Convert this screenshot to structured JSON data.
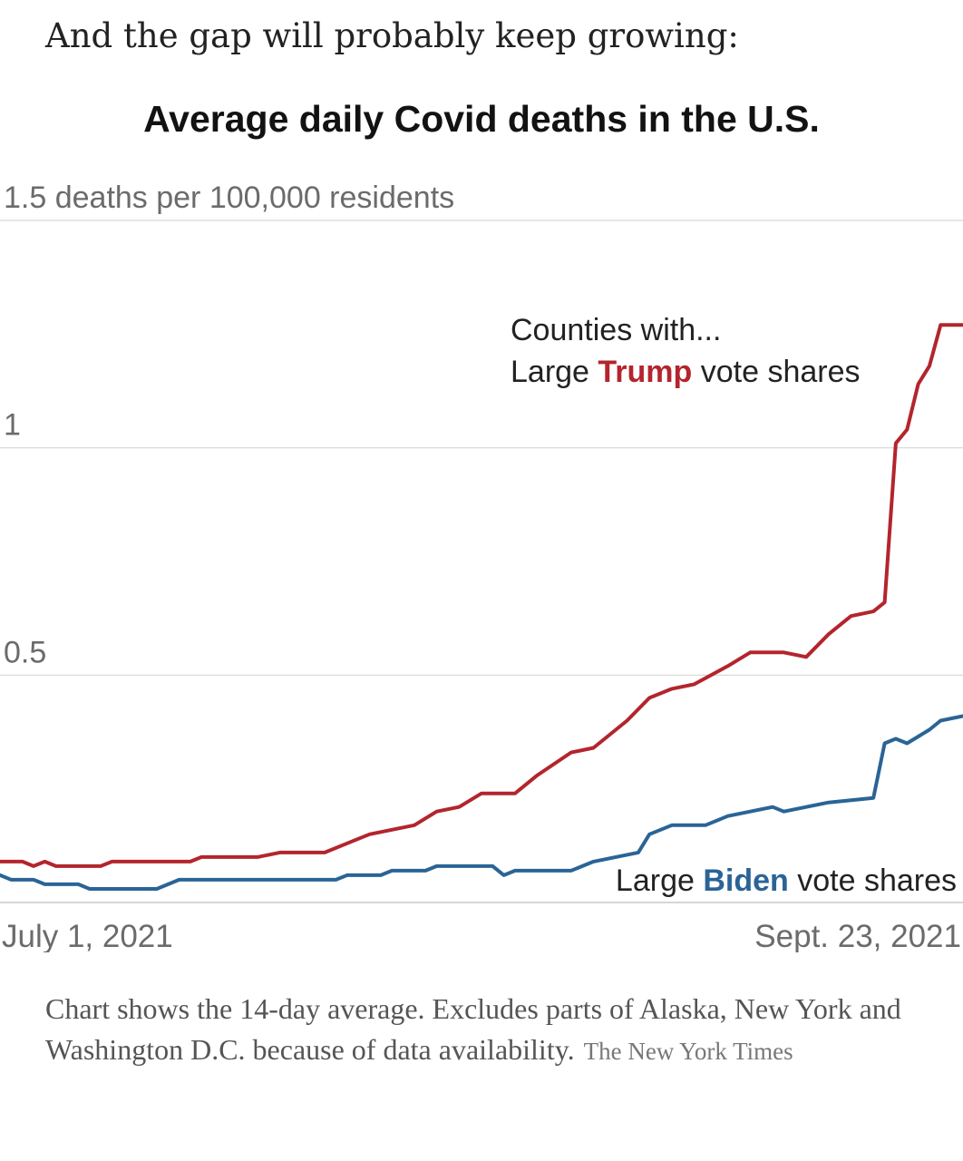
{
  "lead_text": "And the gap will probably keep growing:",
  "chart_data": {
    "type": "line",
    "title": "Average daily Covid deaths in the U.S.",
    "ylabel": "1.5 deaths per 100,000 residents",
    "ylim": [
      0,
      1.5
    ],
    "y_ticks": [
      {
        "value": 1.5,
        "label": "1.5 deaths per 100,000 residents"
      },
      {
        "value": 1,
        "label": "1"
      },
      {
        "value": 0.5,
        "label": "0.5"
      }
    ],
    "x_start_label": "July 1, 2021",
    "x_end_label": "Sept. 23, 2021",
    "annotation_intro": "Counties with...",
    "series": [
      {
        "name": "Trump",
        "label_before": "Large ",
        "label_bold": "Trump",
        "label_after": " vote shares",
        "color": "#b3252d",
        "points": [
          [
            "2021-07-01",
            0.09
          ],
          [
            "2021-07-03",
            0.09
          ],
          [
            "2021-07-04",
            0.08
          ],
          [
            "2021-07-05",
            0.09
          ],
          [
            "2021-07-06",
            0.08
          ],
          [
            "2021-07-10",
            0.08
          ],
          [
            "2021-07-11",
            0.09
          ],
          [
            "2021-07-18",
            0.09
          ],
          [
            "2021-07-19",
            0.1
          ],
          [
            "2021-07-24",
            0.1
          ],
          [
            "2021-07-26",
            0.11
          ],
          [
            "2021-07-30",
            0.11
          ],
          [
            "2021-08-01",
            0.13
          ],
          [
            "2021-08-03",
            0.15
          ],
          [
            "2021-08-05",
            0.16
          ],
          [
            "2021-08-07",
            0.17
          ],
          [
            "2021-08-09",
            0.2
          ],
          [
            "2021-08-11",
            0.21
          ],
          [
            "2021-08-13",
            0.24
          ],
          [
            "2021-08-16",
            0.24
          ],
          [
            "2021-08-18",
            0.28
          ],
          [
            "2021-08-21",
            0.33
          ],
          [
            "2021-08-23",
            0.34
          ],
          [
            "2021-08-26",
            0.4
          ],
          [
            "2021-08-28",
            0.45
          ],
          [
            "2021-08-30",
            0.47
          ],
          [
            "2021-09-01",
            0.48
          ],
          [
            "2021-09-04",
            0.52
          ],
          [
            "2021-09-06",
            0.55
          ],
          [
            "2021-09-09",
            0.55
          ],
          [
            "2021-09-11",
            0.54
          ],
          [
            "2021-09-13",
            0.59
          ],
          [
            "2021-09-15",
            0.63
          ],
          [
            "2021-09-17",
            0.64
          ],
          [
            "2021-09-18",
            0.66
          ],
          [
            "2021-09-19",
            1.01
          ],
          [
            "2021-09-20",
            1.04
          ],
          [
            "2021-09-21",
            1.14
          ],
          [
            "2021-09-22",
            1.18
          ],
          [
            "2021-09-23",
            1.27
          ],
          [
            "2021-09-25",
            1.27
          ]
        ]
      },
      {
        "name": "Biden",
        "label_before": "Large ",
        "label_bold": "Biden",
        "label_after": " vote shares",
        "color": "#2a6496",
        "points": [
          [
            "2021-07-01",
            0.06
          ],
          [
            "2021-07-02",
            0.05
          ],
          [
            "2021-07-04",
            0.05
          ],
          [
            "2021-07-05",
            0.04
          ],
          [
            "2021-07-08",
            0.04
          ],
          [
            "2021-07-09",
            0.03
          ],
          [
            "2021-07-15",
            0.03
          ],
          [
            "2021-07-17",
            0.05
          ],
          [
            "2021-07-31",
            0.05
          ],
          [
            "2021-08-01",
            0.06
          ],
          [
            "2021-08-04",
            0.06
          ],
          [
            "2021-08-05",
            0.07
          ],
          [
            "2021-08-08",
            0.07
          ],
          [
            "2021-08-09",
            0.08
          ],
          [
            "2021-08-14",
            0.08
          ],
          [
            "2021-08-15",
            0.06
          ],
          [
            "2021-08-16",
            0.07
          ],
          [
            "2021-08-21",
            0.07
          ],
          [
            "2021-08-23",
            0.09
          ],
          [
            "2021-08-25",
            0.1
          ],
          [
            "2021-08-27",
            0.11
          ],
          [
            "2021-08-28",
            0.15
          ],
          [
            "2021-08-30",
            0.17
          ],
          [
            "2021-09-02",
            0.17
          ],
          [
            "2021-09-04",
            0.19
          ],
          [
            "2021-09-06",
            0.2
          ],
          [
            "2021-09-08",
            0.21
          ],
          [
            "2021-09-09",
            0.2
          ],
          [
            "2021-09-11",
            0.21
          ],
          [
            "2021-09-13",
            0.22
          ],
          [
            "2021-09-17",
            0.23
          ],
          [
            "2021-09-18",
            0.35
          ],
          [
            "2021-09-19",
            0.36
          ],
          [
            "2021-09-20",
            0.35
          ],
          [
            "2021-09-22",
            0.38
          ],
          [
            "2021-09-23",
            0.4
          ],
          [
            "2021-09-25",
            0.41
          ]
        ]
      }
    ]
  },
  "note_text": "Chart shows the 14-day average. Excludes parts of Alaska, New York and Washington D.C. because of data availability.",
  "credit_text": "The New York Times"
}
